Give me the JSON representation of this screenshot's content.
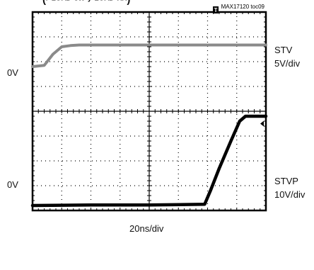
{
  "header": {
    "title_fragment": "(ʳ ᴸᴼᴬᴰ  ˢᵂ  ʸ ᴸᴼᴬᴰ  ᴿᴿ)",
    "figure_id": "MAX17120 toc09"
  },
  "chart_data": {
    "type": "line",
    "title": "",
    "xlabel": "20ns/div",
    "ylabel": "",
    "grid": true,
    "x_divisions": 8,
    "y_divisions": 8,
    "x_unit_per_div_ns": 20,
    "xlim_ns": [
      0,
      160
    ],
    "trigger_marker": "T",
    "series": [
      {
        "name": "STV",
        "scale_label": "5V/div",
        "ground_label": "0V",
        "ground_div_from_top": 2.2,
        "color": "#8a8a8a",
        "x_ns": [
          0,
          8,
          14,
          20,
          26,
          32,
          40,
          80,
          120,
          160
        ],
        "y_div": [
          0,
          0.05,
          0.5,
          0.8,
          0.85,
          0.87,
          0.87,
          0.87,
          0.87,
          0.87
        ]
      },
      {
        "name": "STVP",
        "scale_label": "10V/div",
        "ground_label": "0V",
        "ground_div_from_top": 7.8,
        "color": "#000000",
        "x_ns": [
          0,
          40,
          80,
          118,
          122,
          128,
          136,
          142,
          146,
          150,
          160
        ],
        "y_div": [
          0,
          0.02,
          0.02,
          0.05,
          0.6,
          1.5,
          2.6,
          3.4,
          3.6,
          3.6,
          3.6
        ]
      }
    ]
  }
}
